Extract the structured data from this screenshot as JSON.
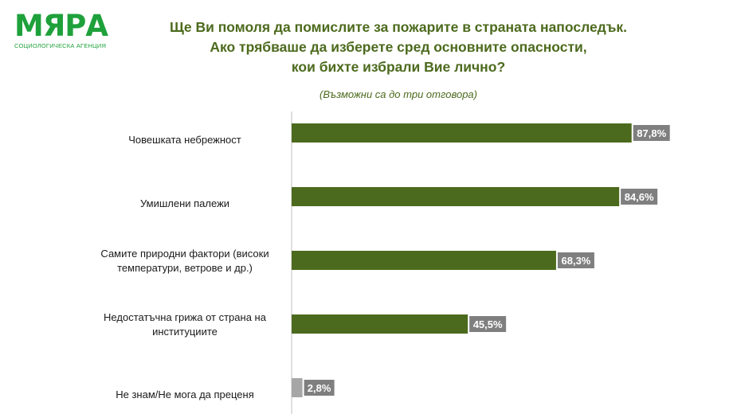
{
  "logo": {
    "name": "МЯРА",
    "tagline": "СОЦИОЛОГИЧЕСКА АГЕНЦИЯ",
    "color": "#1ea13b"
  },
  "title_lines": [
    "Ще Ви помоля да помислите за пожарите в страната напоследък.",
    "Ако трябваше да изберете сред основните опасности,",
    "кои бихте избрали Вие лично?"
  ],
  "subtitle": "(Възможни са до три отговора)",
  "colors": {
    "title": "#4c6a1d",
    "bar": "#4c6a1d",
    "bar_dont_know": "#a6a6a6",
    "label_box": "#7f7f7f",
    "label_text": "#ffffff",
    "axis": "#bfbfbf"
  },
  "chart_data": {
    "type": "bar",
    "orientation": "horizontal",
    "categories": [
      [
        "Човешката небрежност"
      ],
      [
        "Умишлени палежи"
      ],
      [
        "Самите природни фактори (високи",
        "температури, ветрове и др.)"
      ],
      [
        "Недостатъчна грижа от страна на",
        "институциите"
      ],
      [
        "Не знам/Не мога да преценя"
      ]
    ],
    "values": [
      87.8,
      84.6,
      68.3,
      45.5,
      2.8
    ],
    "value_labels": [
      "87,8%",
      "84,6%",
      "68,3%",
      "45,5%",
      "2,8%"
    ],
    "xlim": [
      0,
      100
    ],
    "grid": false
  }
}
